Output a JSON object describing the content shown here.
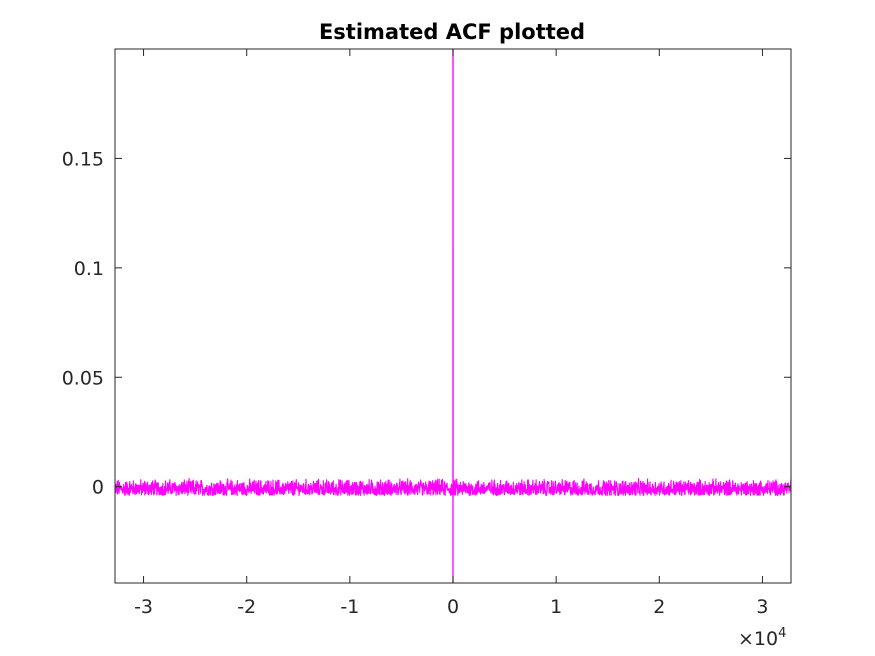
{
  "chart_data": {
    "type": "line",
    "title": "Estimated ACF plotted",
    "xlabel": "",
    "ylabel": "",
    "xlim": [
      -32767,
      32767
    ],
    "ylim": [
      -0.044,
      0.2
    ],
    "x_exponent_label": "×10",
    "x_exponent_power": "4",
    "x_ticks": [
      -30000,
      -20000,
      -10000,
      0,
      10000,
      20000,
      30000
    ],
    "x_tick_labels": [
      "-3",
      "-2",
      "-1",
      "0",
      "1",
      "2",
      "3"
    ],
    "y_ticks": [
      0,
      0.05,
      0.1,
      0.15
    ],
    "y_tick_labels": [
      "0",
      "0.05",
      "0.1",
      "0.15"
    ],
    "grid": false,
    "series": [
      {
        "color": "#ff00ff",
        "peak": {
          "x": 0,
          "y": 0.2
        },
        "near_peak": [
          {
            "x": -4,
            "y": -0.004
          },
          {
            "x": -3,
            "y": 0.003
          },
          {
            "x": -2,
            "y": -0.005
          },
          {
            "x": -1,
            "y": 0.155
          },
          {
            "x": 0,
            "y": 0.2
          },
          {
            "x": 1,
            "y": 0.155
          },
          {
            "x": 2,
            "y": -0.005
          },
          {
            "x": 3,
            "y": 0.003
          },
          {
            "x": 4,
            "y": -0.004
          }
        ],
        "min_spike": {
          "x": 0,
          "y": -0.044
        },
        "noise_band": [
          -0.004,
          0.004
        ]
      }
    ]
  }
}
